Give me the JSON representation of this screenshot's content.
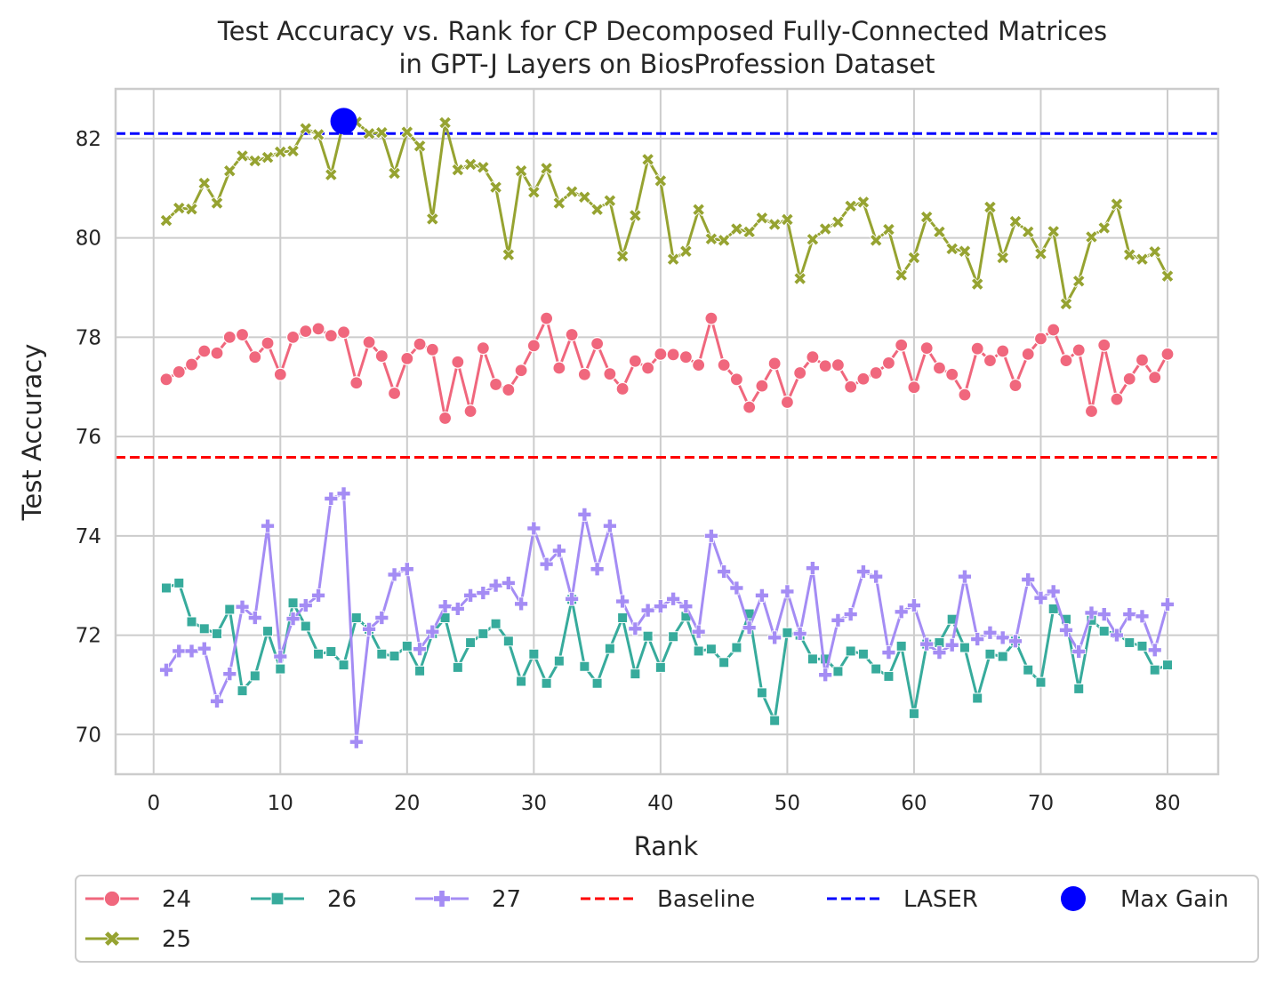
{
  "chart_data": {
    "type": "line",
    "title_lines": [
      "Test Accuracy vs. Rank for CP Decomposed Fully-Connected Matrices",
      "in GPT-J Layers on BiosProfession Dataset"
    ],
    "xlabel": "Rank",
    "ylabel": "Test Accuracy",
    "xlim": [
      -3,
      84
    ],
    "ylim": [
      69.2,
      83.0
    ],
    "xticks": [
      0,
      10,
      20,
      30,
      40,
      50,
      60,
      70,
      80
    ],
    "yticks": [
      70,
      72,
      74,
      76,
      78,
      80,
      82
    ],
    "grid": true,
    "legend_location": "below",
    "x": [
      1,
      2,
      3,
      4,
      5,
      6,
      7,
      8,
      9,
      10,
      11,
      12,
      13,
      14,
      15,
      16,
      17,
      18,
      19,
      20,
      21,
      22,
      23,
      24,
      25,
      26,
      27,
      28,
      29,
      30,
      31,
      32,
      33,
      34,
      35,
      36,
      37,
      38,
      39,
      40,
      41,
      42,
      43,
      44,
      45,
      46,
      47,
      48,
      49,
      50,
      51,
      52,
      53,
      54,
      55,
      56,
      57,
      58,
      59,
      60,
      61,
      62,
      63,
      64,
      65,
      66,
      67,
      68,
      69,
      70,
      71,
      72,
      73,
      74,
      75,
      76,
      77,
      78,
      79,
      80
    ],
    "series": [
      {
        "name": "24",
        "color": "#f0677d",
        "marker": "circle",
        "values": [
          77.15,
          77.3,
          77.45,
          77.72,
          77.68,
          78.0,
          78.05,
          77.6,
          77.88,
          77.25,
          78.0,
          78.12,
          78.17,
          78.03,
          78.1,
          77.08,
          77.9,
          77.62,
          76.87,
          77.57,
          77.86,
          77.75,
          76.37,
          77.5,
          76.51,
          77.78,
          77.05,
          76.94,
          77.33,
          77.83,
          78.38,
          77.38,
          78.05,
          77.25,
          77.87,
          77.26,
          76.96,
          77.52,
          77.38,
          77.66,
          77.65,
          77.6,
          77.44,
          78.38,
          77.44,
          77.15,
          76.59,
          77.02,
          77.47,
          76.69,
          77.28,
          77.6,
          77.42,
          77.44,
          77.0,
          77.16,
          77.28,
          77.48,
          77.84,
          76.99,
          77.78,
          77.38,
          77.25,
          76.84,
          77.77,
          77.53,
          77.72,
          77.03,
          77.66,
          77.97,
          78.15,
          77.53,
          77.74,
          76.51,
          77.84,
          76.75,
          77.16,
          77.54,
          77.19,
          77.66
        ]
      },
      {
        "name": "25",
        "color": "#96a331",
        "marker": "x",
        "values": [
          80.35,
          80.6,
          80.58,
          81.1,
          80.7,
          81.35,
          81.65,
          81.55,
          81.62,
          81.73,
          81.75,
          82.2,
          82.08,
          81.27,
          82.35,
          82.33,
          82.1,
          82.12,
          81.3,
          82.13,
          81.85,
          80.38,
          82.32,
          81.37,
          81.48,
          81.42,
          81.02,
          79.66,
          81.35,
          80.92,
          81.4,
          80.7,
          80.93,
          80.82,
          80.57,
          80.75,
          79.63,
          80.45,
          81.58,
          81.15,
          79.57,
          79.73,
          80.57,
          79.98,
          79.95,
          80.18,
          80.12,
          80.4,
          80.27,
          80.37,
          79.18,
          79.97,
          80.18,
          80.32,
          80.64,
          80.72,
          79.95,
          80.17,
          79.25,
          79.6,
          80.42,
          80.12,
          79.78,
          79.73,
          79.07,
          80.62,
          79.6,
          80.33,
          80.12,
          79.68,
          80.13,
          78.67,
          79.13,
          80.02,
          80.2,
          80.68,
          79.66,
          79.57,
          79.72,
          79.23
        ]
      },
      {
        "name": "26",
        "color": "#37ab9c",
        "marker": "square",
        "values": [
          72.95,
          73.05,
          72.27,
          72.13,
          72.03,
          72.52,
          70.88,
          71.18,
          72.08,
          71.32,
          72.65,
          72.18,
          71.62,
          71.67,
          71.4,
          72.35,
          72.12,
          71.62,
          71.58,
          71.78,
          71.28,
          72.03,
          72.35,
          71.35,
          71.85,
          72.03,
          72.23,
          71.88,
          71.07,
          71.62,
          71.03,
          71.48,
          72.72,
          71.37,
          71.03,
          71.73,
          72.35,
          71.22,
          71.98,
          71.35,
          71.97,
          72.38,
          71.68,
          71.72,
          71.45,
          71.75,
          72.43,
          70.84,
          70.28,
          72.05,
          72.0,
          71.52,
          71.52,
          71.27,
          71.68,
          71.62,
          71.32,
          71.17,
          71.78,
          70.42,
          71.82,
          71.85,
          72.32,
          71.75,
          70.73,
          71.62,
          71.57,
          71.88,
          71.3,
          71.05,
          72.53,
          72.32,
          70.92,
          72.3,
          72.08,
          72.03,
          71.85,
          71.78,
          71.3,
          71.4
        ]
      },
      {
        "name": "27",
        "color": "#a48cf4",
        "marker": "plus",
        "values": [
          71.3,
          71.68,
          71.68,
          71.73,
          70.67,
          71.22,
          72.57,
          72.35,
          74.2,
          71.57,
          72.33,
          72.6,
          72.8,
          74.75,
          74.85,
          69.85,
          72.12,
          72.35,
          73.22,
          73.33,
          71.72,
          72.07,
          72.58,
          72.53,
          72.8,
          72.85,
          73.0,
          73.05,
          72.63,
          74.15,
          73.43,
          73.7,
          72.73,
          74.43,
          73.33,
          74.2,
          72.68,
          72.13,
          72.5,
          72.58,
          72.73,
          72.58,
          72.07,
          74.0,
          73.28,
          72.95,
          72.15,
          72.8,
          71.95,
          72.88,
          72.03,
          73.35,
          71.2,
          72.3,
          72.42,
          73.28,
          73.18,
          71.65,
          72.47,
          72.6,
          71.82,
          71.65,
          71.8,
          73.18,
          71.92,
          72.05,
          71.95,
          71.88,
          73.12,
          72.75,
          72.88,
          72.1,
          71.67,
          72.45,
          72.42,
          72.0,
          72.42,
          72.38,
          71.7,
          72.62
        ]
      }
    ],
    "reference_lines": [
      {
        "name": "Baseline",
        "y": 75.58,
        "color": "#ff0000",
        "style": "dashed"
      },
      {
        "name": "LASER",
        "y": 82.1,
        "color": "#0000ff",
        "style": "dashed"
      }
    ],
    "highlight_point": {
      "name": "Max Gain",
      "x": 15,
      "y": 82.35,
      "color": "#0000ff"
    },
    "legend_entries": [
      {
        "label": "24",
        "kind": "line",
        "color": "#f0677d",
        "marker": "circle"
      },
      {
        "label": "26",
        "kind": "line",
        "color": "#37ab9c",
        "marker": "square"
      },
      {
        "label": "27",
        "kind": "line",
        "color": "#a48cf4",
        "marker": "plus"
      },
      {
        "label": "Baseline",
        "kind": "dashed",
        "color": "#ff0000"
      },
      {
        "label": "LASER",
        "kind": "dashed",
        "color": "#0000ff"
      },
      {
        "label": "Max Gain",
        "kind": "dot",
        "color": "#0000ff"
      },
      {
        "label": "25",
        "kind": "line",
        "color": "#96a331",
        "marker": "x"
      }
    ]
  }
}
